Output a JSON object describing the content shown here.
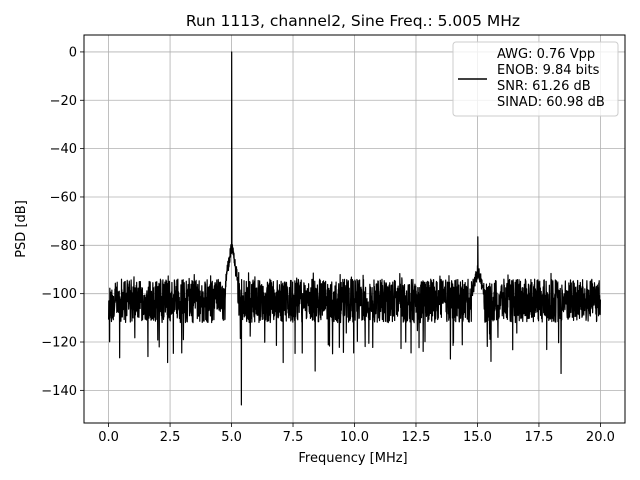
{
  "chart_data": {
    "type": "line",
    "title": "Run 1113, channel2, Sine Freq.: 5.005 MHz",
    "xlabel": "Frequency [MHz]",
    "ylabel": "PSD [dB]",
    "xlim": [
      -1.0,
      21.0
    ],
    "ylim": [
      -153.5,
      7.0
    ],
    "xticks": [
      0.0,
      2.5,
      5.0,
      7.5,
      10.0,
      12.5,
      15.0,
      17.5,
      20.0
    ],
    "xtick_labels": [
      "0.0",
      "2.5",
      "5.0",
      "7.5",
      "10.0",
      "12.5",
      "15.0",
      "17.5",
      "20.0"
    ],
    "yticks": [
      0,
      -20,
      -40,
      -60,
      -80,
      -100,
      -120,
      -140
    ],
    "ytick_labels": [
      "0",
      "−20",
      "−40",
      "−60",
      "−80",
      "−100",
      "−120",
      "−140"
    ],
    "grid": true,
    "legend_position": "top-right",
    "series_color": "#000000",
    "legend_lines": [
      "AWG: 0.76 Vpp",
      "ENOB: 9.84 bits",
      "SNR: 61.26 dB",
      "SINAD: 60.98 dB"
    ],
    "noise_floor_db": -103,
    "peaks": [
      {
        "x": 5.005,
        "y": 0.0
      },
      {
        "x": 15.015,
        "y": -76.5
      }
    ],
    "notable_dips": [
      {
        "x": 0.45,
        "y": -126.5
      },
      {
        "x": 1.6,
        "y": -126.0
      },
      {
        "x": 2.4,
        "y": -128.5
      },
      {
        "x": 5.4,
        "y": -146.0
      },
      {
        "x": 7.1,
        "y": -128.5
      },
      {
        "x": 8.4,
        "y": -132.0
      },
      {
        "x": 12.3,
        "y": -124.5
      },
      {
        "x": 13.9,
        "y": -127.0
      },
      {
        "x": 15.55,
        "y": -128.0
      },
      {
        "x": 18.4,
        "y": -133.0
      }
    ]
  }
}
